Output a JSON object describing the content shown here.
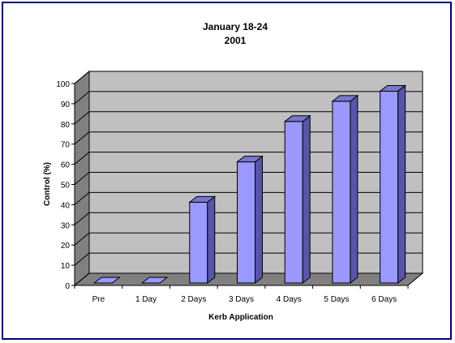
{
  "chart_data": {
    "type": "bar",
    "title": [
      "January 18-24",
      "2001"
    ],
    "xlabel": "Kerb Application",
    "ylabel": "Control (%)",
    "categories": [
      "Pre",
      "1 Day",
      "2 Days",
      "3 Days",
      "4 Days",
      "5 Days",
      "6 Days"
    ],
    "values": [
      0,
      0,
      40,
      60,
      80,
      90,
      95
    ],
    "ylim": [
      0,
      100
    ],
    "yticks": [
      0,
      10,
      20,
      30,
      40,
      50,
      60,
      70,
      80,
      90,
      100
    ],
    "grid": true,
    "legend": "none",
    "colors": {
      "bar_front": "#9999ff",
      "bar_side": "#5555aa",
      "bar_top": "#7777cc",
      "back_wall": "#c0c0c0",
      "side_wall": "#808080",
      "floor": "#808080",
      "frame": "#000080"
    }
  }
}
